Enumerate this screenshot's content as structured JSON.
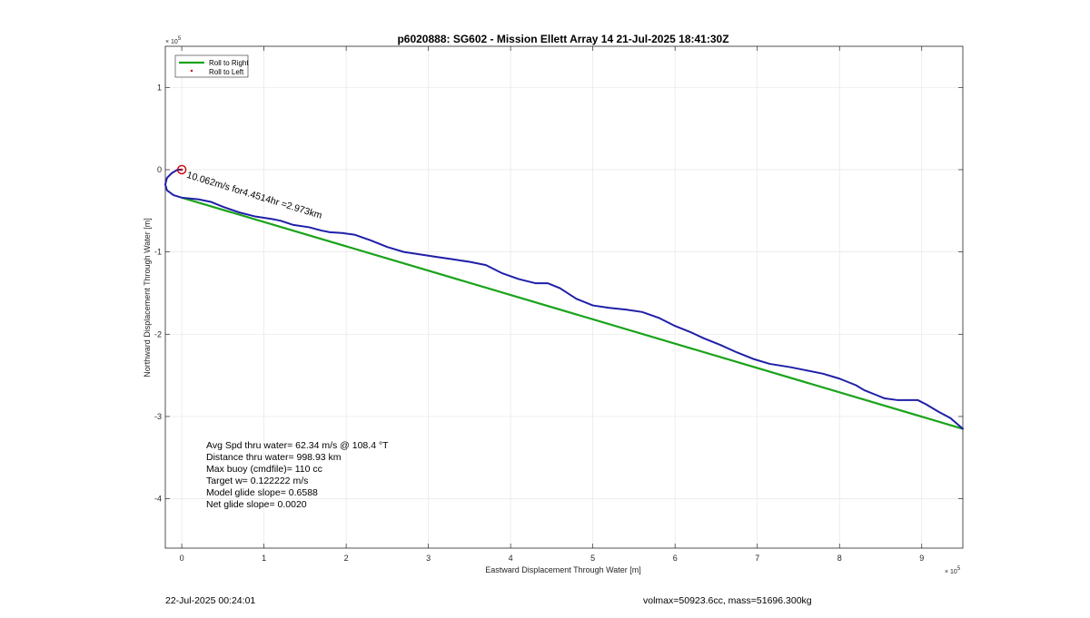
{
  "chart_data": {
    "type": "line",
    "title": "p6020888: SG602 - Mission Ellett Array 14 21-Jul-2025 18:41:30Z",
    "xlabel": "Eastward Displacement Through Water [m]",
    "ylabel": "Northward Displacement Through Water [m]",
    "x_multiplier": "× 10",
    "x_exponent": "5",
    "y_multiplier": "× 10",
    "y_exponent": "5",
    "xlim": [
      -0.2,
      9.5
    ],
    "ylim": [
      -4.6,
      1.5
    ],
    "xticks": [
      0,
      1,
      2,
      3,
      4,
      5,
      6,
      7,
      8,
      9
    ],
    "xtick_labels": [
      "0",
      "1",
      "2",
      "3",
      "4",
      "5",
      "6",
      "7",
      "8",
      "9"
    ],
    "yticks": [
      1,
      0,
      -1,
      -2,
      -3,
      -4
    ],
    "ytick_labels": [
      "1",
      "0",
      "-1",
      "-2",
      "-3",
      "-4"
    ],
    "grid": true,
    "legend_position": "top-left",
    "series": [
      {
        "name": "Roll to Right",
        "color": "#1aa31a",
        "kind": "line",
        "x": [
          0,
          9.5
        ],
        "y": [
          -0.34,
          -3.15
        ]
      },
      {
        "name": "Roll to Left",
        "color": "#cc0000",
        "kind": "marker",
        "x": [
          0
        ],
        "y": [
          0
        ]
      },
      {
        "name": "",
        "color": "#1f1fa8",
        "kind": "line",
        "x": [
          0.0,
          -0.05,
          -0.12,
          -0.18,
          -0.2,
          -0.18,
          -0.1,
          0.0,
          0.2,
          0.35,
          0.5,
          0.7,
          0.9,
          1.1,
          1.2,
          1.35,
          1.55,
          1.7,
          1.8,
          1.95,
          2.1,
          2.3,
          2.5,
          2.7,
          2.9,
          3.1,
          3.3,
          3.5,
          3.7,
          3.9,
          4.1,
          4.3,
          4.45,
          4.6,
          4.8,
          5.0,
          5.2,
          5.4,
          5.6,
          5.8,
          6.0,
          6.2,
          6.35,
          6.55,
          6.75,
          6.95,
          7.15,
          7.4,
          7.6,
          7.8,
          8.0,
          8.2,
          8.3,
          8.45,
          8.55,
          8.7,
          8.85,
          8.95,
          9.05,
          9.2,
          9.35,
          9.5
        ],
        "y": [
          0.0,
          0.0,
          -0.04,
          -0.1,
          -0.18,
          -0.25,
          -0.31,
          -0.34,
          -0.36,
          -0.39,
          -0.45,
          -0.52,
          -0.57,
          -0.6,
          -0.62,
          -0.67,
          -0.7,
          -0.74,
          -0.76,
          -0.77,
          -0.79,
          -0.86,
          -0.94,
          -1.0,
          -1.03,
          -1.06,
          -1.09,
          -1.12,
          -1.16,
          -1.26,
          -1.33,
          -1.38,
          -1.38,
          -1.44,
          -1.57,
          -1.65,
          -1.68,
          -1.7,
          -1.73,
          -1.8,
          -1.9,
          -1.98,
          -2.05,
          -2.13,
          -2.22,
          -2.3,
          -2.36,
          -2.4,
          -2.44,
          -2.48,
          -2.54,
          -2.62,
          -2.68,
          -2.74,
          -2.78,
          -2.8,
          -2.8,
          -2.8,
          -2.85,
          -2.94,
          -3.02,
          -3.15
        ]
      }
    ],
    "annotation": {
      "label": "0.062m/s for4.4514hr =2.973km",
      "number_marker": "1",
      "x": 0.08,
      "y": -0.08,
      "rotation_deg": 17
    }
  },
  "stats": [
    "Avg Spd thru water= 62.34 m/s @ 108.4 °T",
    "Distance thru water= 998.93 km",
    "Max buoy (cmdfile)= 110 cc",
    "Target w= 0.122222 m/s",
    "Model glide slope= 0.6588",
    "Net glide slope= 0.0020"
  ],
  "footer": {
    "left": "22-Jul-2025 00:24:01",
    "right": "volmax=50923.6cc, mass=51696.300kg"
  },
  "colors": {
    "grid": "#e6e6e6",
    "axis": "#262626",
    "background": "#ffffff"
  }
}
